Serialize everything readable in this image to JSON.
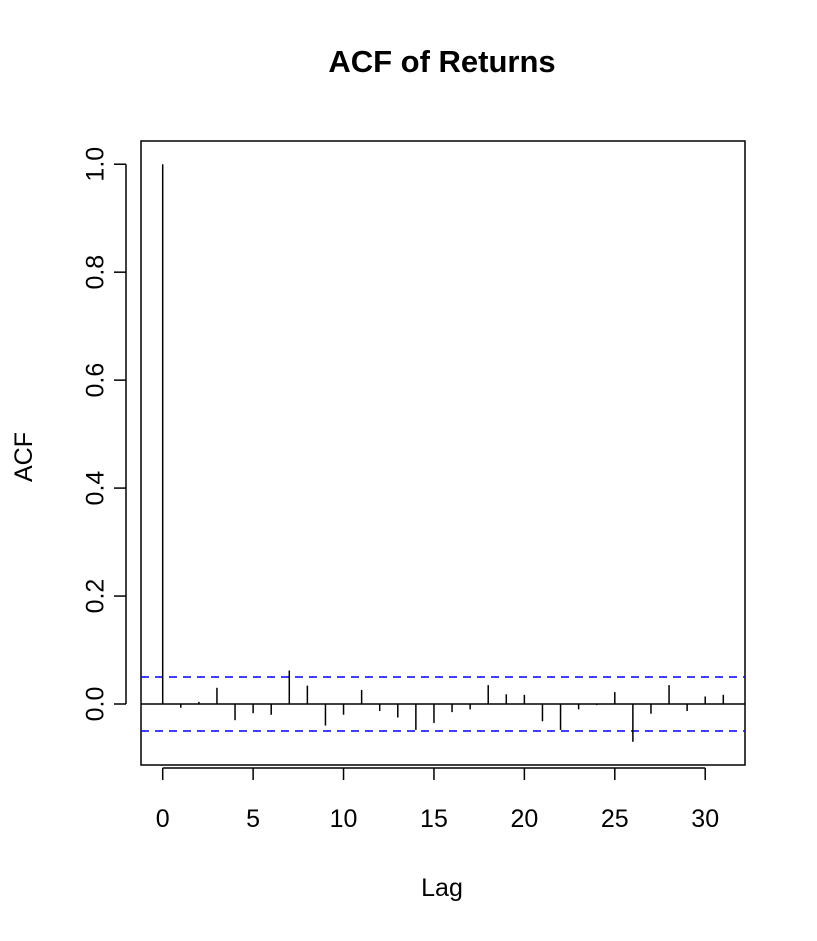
{
  "chart_data": {
    "type": "bar",
    "title": "ACF of Returns",
    "xlabel": "Lag",
    "ylabel": "ACF",
    "xlim": [
      -1.2,
      32.2
    ],
    "ylim": [
      -0.113,
      1.043
    ],
    "x_ticks": [
      0,
      5,
      10,
      15,
      20,
      25,
      30
    ],
    "x_tick_labels": [
      "0",
      "5",
      "10",
      "15",
      "20",
      "25",
      "30"
    ],
    "y_ticks": [
      0.0,
      0.2,
      0.4,
      0.6,
      0.8,
      1.0
    ],
    "y_tick_labels": [
      "0.0",
      "0.2",
      "0.4",
      "0.6",
      "0.8",
      "1.0"
    ],
    "lags": [
      0,
      1,
      2,
      3,
      4,
      5,
      6,
      7,
      8,
      9,
      10,
      11,
      12,
      13,
      14,
      15,
      16,
      17,
      18,
      19,
      20,
      21,
      22,
      23,
      24,
      25,
      26,
      27,
      28,
      29,
      30,
      31
    ],
    "values": [
      1.0,
      -0.007,
      0.004,
      0.03,
      -0.03,
      -0.017,
      -0.02,
      0.062,
      0.034,
      -0.04,
      -0.02,
      0.026,
      -0.013,
      -0.025,
      -0.048,
      -0.035,
      -0.015,
      -0.01,
      0.035,
      0.018,
      0.017,
      -0.032,
      -0.048,
      -0.01,
      -0.002,
      0.022,
      -0.07,
      -0.018,
      0.035,
      -0.013,
      0.014,
      0.017
    ],
    "confidence_bound": 0.05,
    "colors": {
      "bars": "#000000",
      "confidence": "#0000ff",
      "zero_line": "#000000"
    },
    "grid": false
  }
}
